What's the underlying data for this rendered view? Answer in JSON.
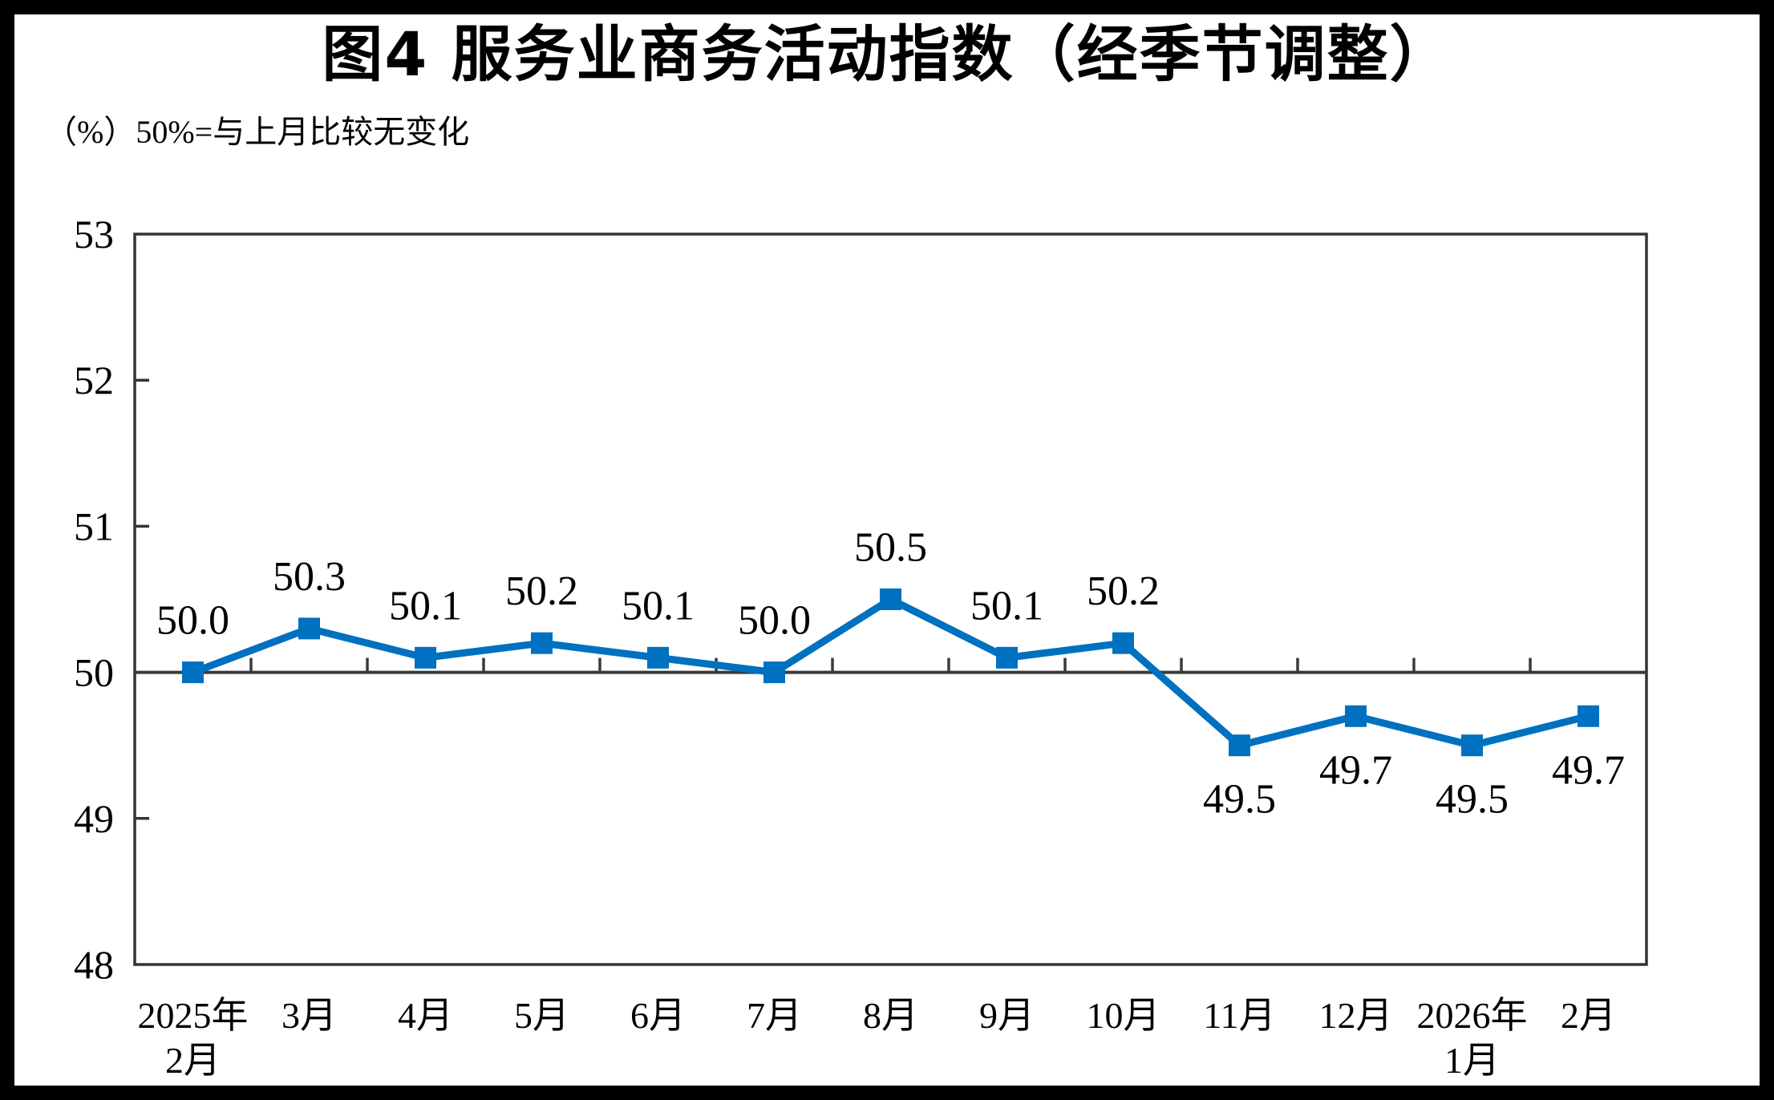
{
  "page": {
    "background_color": "#ffffff",
    "frame_color": "#000000"
  },
  "chart_data": {
    "type": "line",
    "title": "图4  服务业商务活动指数（经季节调整）",
    "unit_note": "（%）50%=与上月比较无变化",
    "categories": [
      [
        "2025年",
        "2月"
      ],
      [
        "3月"
      ],
      [
        "4月"
      ],
      [
        "5月"
      ],
      [
        "6月"
      ],
      [
        "7月"
      ],
      [
        "8月"
      ],
      [
        "9月"
      ],
      [
        "10月"
      ],
      [
        "11月"
      ],
      [
        "12月"
      ],
      [
        "2026年",
        "1月"
      ],
      [
        "2月"
      ]
    ],
    "values": [
      50.0,
      50.3,
      50.1,
      50.2,
      50.1,
      50.0,
      50.5,
      50.1,
      50.2,
      49.5,
      49.7,
      49.5,
      49.7
    ],
    "data_labels": [
      "50.0",
      "50.3",
      "50.1",
      "50.2",
      "50.1",
      "50.0",
      "50.5",
      "50.1",
      "50.2",
      "49.5",
      "49.7",
      "49.5",
      "49.7"
    ],
    "ylim": [
      48,
      53
    ],
    "yticks": [
      48,
      49,
      50,
      51,
      52,
      53
    ],
    "baseline_value": 50,
    "grid": false,
    "legend": null,
    "line_color": "#0070C0",
    "marker": "square",
    "axis_color": "#333333",
    "baseline_color": "#3a3a3a"
  }
}
